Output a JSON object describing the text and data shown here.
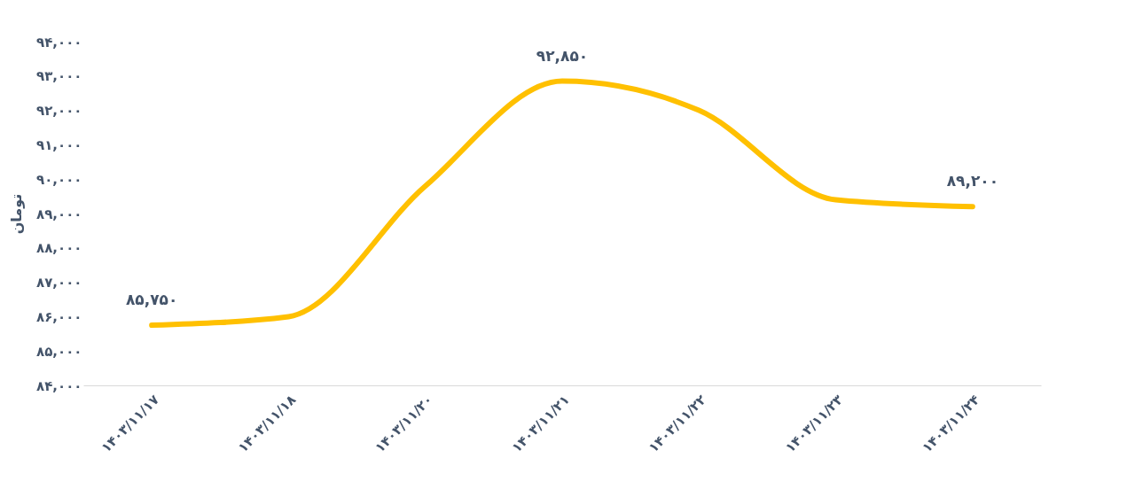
{
  "chart_data": {
    "type": "line",
    "ylabel": "تومان",
    "categories": [
      "۱۴۰۳/۱۱/۱۷",
      "۱۴۰۳/۱۱/۱۸",
      "۱۴۰۳/۱۱/۲۰",
      "۱۴۰۳/۱۱/۲۱",
      "۱۴۰۳/۱۱/۲۲",
      "۱۴۰۳/۱۱/۲۳",
      "۱۴۰۳/۱۱/۲۴"
    ],
    "series": [
      {
        "color": "#ffc000",
        "values": [
          85750,
          86000,
          89800,
          92850,
          92000,
          89400,
          89200
        ],
        "value_labels": [
          "۸۵,۷۵۰",
          null,
          null,
          "۹۲,۸۵۰",
          null,
          null,
          "۸۹,۲۰۰"
        ]
      }
    ],
    "ylim": [
      84000,
      94000
    ],
    "yticks": [
      {
        "value": 84000,
        "label": "۸۴,۰۰۰"
      },
      {
        "value": 85000,
        "label": "۸۵,۰۰۰"
      },
      {
        "value": 86000,
        "label": "۸۶,۰۰۰"
      },
      {
        "value": 87000,
        "label": "۸۷,۰۰۰"
      },
      {
        "value": 88000,
        "label": "۸۸,۰۰۰"
      },
      {
        "value": 89000,
        "label": "۸۹,۰۰۰"
      },
      {
        "value": 90000,
        "label": "۹۰,۰۰۰"
      },
      {
        "value": 91000,
        "label": "۹۱,۰۰۰"
      },
      {
        "value": 92000,
        "label": "۹۲,۰۰۰"
      },
      {
        "value": 93000,
        "label": "۹۳,۰۰۰"
      },
      {
        "value": 94000,
        "label": "۹۴,۰۰۰"
      }
    ],
    "grid": false,
    "legend": false,
    "marker": "none",
    "line_style": "solid"
  }
}
